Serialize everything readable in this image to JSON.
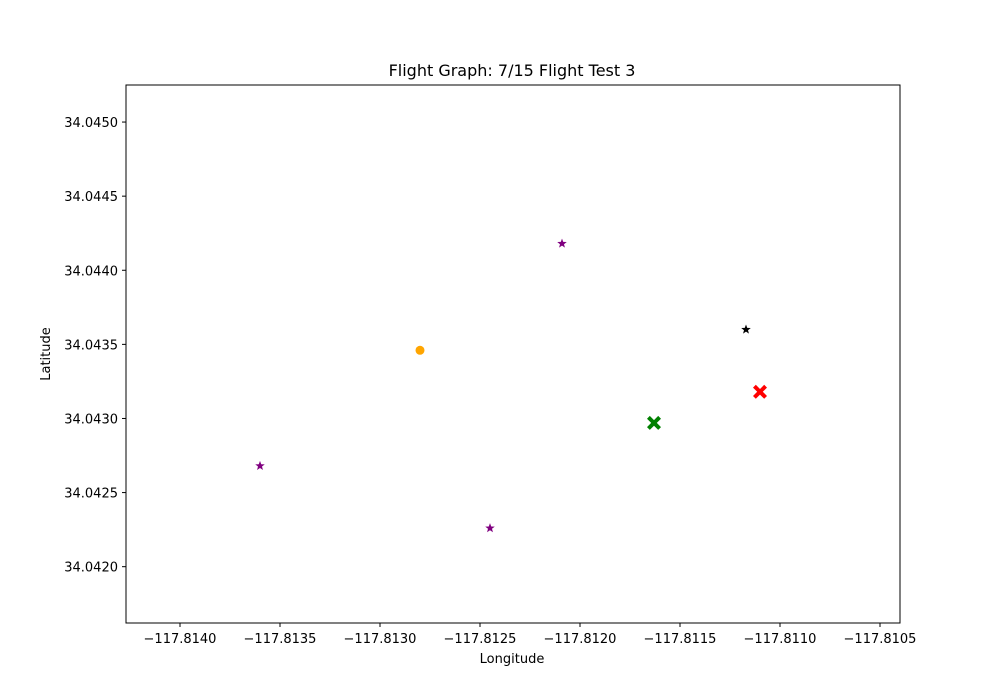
{
  "chart_data": {
    "type": "scatter",
    "title": "Flight Graph: 7/15 Flight Test 3",
    "xlabel": "Longitude",
    "ylabel": "Latitude",
    "xlim": [
      -117.81427,
      -117.8104
    ],
    "ylim": [
      34.04162,
      34.04525
    ],
    "xticks": [
      {
        "value": -117.814,
        "label": "−117.8140"
      },
      {
        "value": -117.8135,
        "label": "−117.8135"
      },
      {
        "value": -117.813,
        "label": "−117.8130"
      },
      {
        "value": -117.8125,
        "label": "−117.8125"
      },
      {
        "value": -117.812,
        "label": "−117.8120"
      },
      {
        "value": -117.8115,
        "label": "−117.8115"
      },
      {
        "value": -117.811,
        "label": "−117.8110"
      },
      {
        "value": -117.8105,
        "label": "−117.8105"
      }
    ],
    "yticks": [
      {
        "value": 34.042,
        "label": "34.0420"
      },
      {
        "value": 34.0425,
        "label": "34.0425"
      },
      {
        "value": 34.043,
        "label": "34.0430"
      },
      {
        "value": 34.0435,
        "label": "34.0435"
      },
      {
        "value": 34.044,
        "label": "34.0440"
      },
      {
        "value": 34.0445,
        "label": "34.0445"
      },
      {
        "value": 34.045,
        "label": "34.0450"
      }
    ],
    "grid": false,
    "series": [
      {
        "marker": "star",
        "color": "#800080",
        "points": [
          {
            "x": -117.8136,
            "y": 34.04268
          },
          {
            "x": -117.81245,
            "y": 34.04226
          },
          {
            "x": -117.81209,
            "y": 34.04418
          }
        ]
      },
      {
        "marker": "circle",
        "color": "#ffa500",
        "points": [
          {
            "x": -117.8128,
            "y": 34.04346
          }
        ]
      },
      {
        "marker": "star",
        "color": "#000000",
        "points": [
          {
            "x": -117.81117,
            "y": 34.0436
          }
        ]
      },
      {
        "marker": "x-filled",
        "color": "#008000",
        "points": [
          {
            "x": -117.81163,
            "y": 34.04297
          }
        ]
      },
      {
        "marker": "x-filled",
        "color": "#ff0000",
        "points": [
          {
            "x": -117.8111,
            "y": 34.04318
          }
        ]
      }
    ]
  }
}
